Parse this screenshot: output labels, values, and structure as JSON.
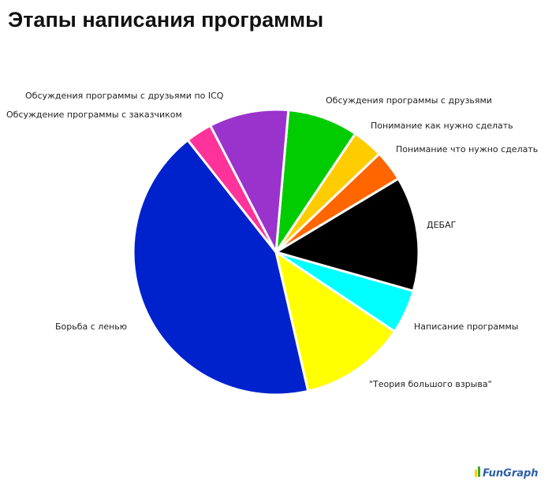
{
  "chart_data": {
    "type": "pie",
    "title": "Этапы написания программы",
    "categories": [
      "Обсуждения программы с друзьями",
      "Понимание как нужно сделать",
      "Понимание что нужно сделать",
      "ДЕБАГ",
      "Написание программы",
      "\"Теория большого взрыва\"",
      "Борьба с ленью",
      "Обсуждение программы с заказчиком",
      "Обсуждения программы с друзьями по ICQ"
    ],
    "values": [
      8,
      3.5,
      3.5,
      13,
      5,
      12,
      43,
      3,
      9
    ],
    "colors": [
      "#00cc00",
      "#ffcc00",
      "#ff6600",
      "#000000",
      "#00ffff",
      "#ffff00",
      "#0022cc",
      "#ff3399",
      "#9933cc"
    ],
    "watermark": "FunGraph"
  }
}
